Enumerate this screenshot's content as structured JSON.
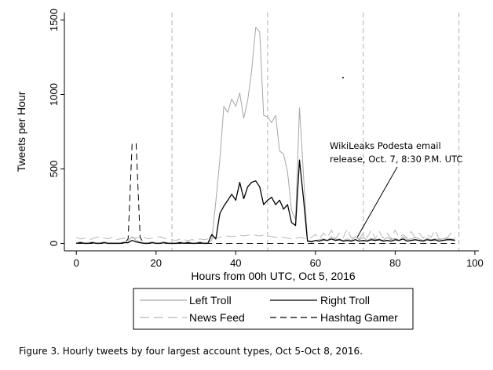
{
  "chart_data": {
    "type": "line",
    "xlabel": "Hours from 00h UTC, Oct 5, 2016",
    "ylabel": "Tweets per Hour",
    "xlim": [
      -3,
      101
    ],
    "ylim": [
      -50,
      1550
    ],
    "xticks": [
      0,
      20,
      40,
      60,
      80,
      100
    ],
    "yticks": [
      0,
      500,
      1000,
      1500
    ],
    "vlines": [
      24,
      48,
      72,
      96
    ],
    "annotation": {
      "lines": [
        "WikiLeaks Podesta email",
        "release, Oct. 7, 8:30 P.M. UTC"
      ],
      "target": [
        70.5,
        0
      ]
    },
    "legend_position": "bottom",
    "x": [
      0,
      1,
      2,
      3,
      4,
      5,
      6,
      7,
      8,
      9,
      10,
      11,
      12,
      13,
      14,
      15,
      16,
      17,
      18,
      19,
      20,
      21,
      22,
      23,
      24,
      25,
      26,
      27,
      28,
      29,
      30,
      31,
      32,
      33,
      34,
      35,
      36,
      37,
      38,
      39,
      40,
      41,
      42,
      43,
      44,
      45,
      46,
      47,
      48,
      49,
      50,
      51,
      52,
      53,
      54,
      55,
      56,
      57,
      58,
      59,
      60,
      61,
      62,
      63,
      64,
      65,
      66,
      67,
      68,
      69,
      70,
      71,
      72,
      73,
      74,
      75,
      76,
      77,
      78,
      79,
      80,
      81,
      82,
      83,
      84,
      85,
      86,
      87,
      88,
      89,
      90,
      91,
      92,
      93,
      94,
      95
    ],
    "series": [
      {
        "name": "Left Troll",
        "color": "#a6a6a6",
        "dash": "solid",
        "values": [
          5,
          10,
          5,
          5,
          10,
          5,
          5,
          10,
          5,
          5,
          5,
          5,
          10,
          15,
          45,
          20,
          10,
          5,
          5,
          10,
          5,
          5,
          10,
          5,
          5,
          5,
          10,
          5,
          10,
          5,
          5,
          10,
          5,
          5,
          20,
          280,
          560,
          920,
          880,
          970,
          920,
          1010,
          840,
          960,
          1160,
          1450,
          1420,
          860,
          850,
          810,
          860,
          620,
          600,
          480,
          220,
          160,
          910,
          460,
          20,
          15,
          20,
          25,
          30,
          20,
          45,
          25,
          30,
          20,
          30,
          20,
          45,
          25,
          40,
          20,
          35,
          25,
          30,
          20,
          40,
          25,
          35,
          20,
          45,
          25,
          30,
          40,
          30,
          20,
          35,
          25,
          30,
          25,
          30,
          35,
          30,
          25
        ]
      },
      {
        "name": "Right Troll",
        "color": "#000000",
        "dash": "solid",
        "values": [
          0,
          5,
          0,
          0,
          5,
          0,
          0,
          5,
          0,
          0,
          0,
          0,
          5,
          5,
          20,
          10,
          5,
          0,
          0,
          5,
          0,
          0,
          5,
          0,
          0,
          0,
          5,
          0,
          5,
          0,
          0,
          5,
          0,
          0,
          60,
          30,
          200,
          250,
          290,
          330,
          290,
          410,
          300,
          380,
          410,
          420,
          380,
          260,
          290,
          310,
          260,
          290,
          230,
          260,
          140,
          120,
          560,
          300,
          15,
          10,
          20,
          15,
          25,
          20,
          30,
          20,
          25,
          15,
          20,
          15,
          25,
          15,
          20,
          15,
          25,
          20,
          25,
          15,
          20,
          15,
          25,
          20,
          30,
          15,
          20,
          25,
          20,
          15,
          25,
          20,
          25,
          15,
          20,
          25,
          25,
          20
        ]
      },
      {
        "name": "News Feed",
        "color": "#b8b8b8",
        "dash": "12,6",
        "values": [
          40,
          30,
          35,
          25,
          30,
          40,
          45,
          35,
          30,
          40,
          25,
          30,
          35,
          30,
          40,
          35,
          45,
          40,
          30,
          35,
          40,
          45,
          35,
          30,
          25,
          20,
          30,
          25,
          20,
          25,
          20,
          30,
          25,
          30,
          35,
          40,
          40,
          45,
          50,
          45,
          50,
          55,
          50,
          55,
          60,
          55,
          50,
          55,
          50,
          45,
          40,
          45,
          40,
          35,
          30,
          35,
          40,
          35,
          30,
          40,
          60,
          30,
          70,
          40,
          90,
          30,
          70,
          40,
          100,
          35,
          50,
          30,
          70,
          40,
          90,
          30,
          80,
          35,
          70,
          30,
          90,
          40,
          60,
          35,
          80,
          40,
          70,
          35,
          60,
          40,
          90,
          30,
          40,
          35,
          70,
          30
        ]
      },
      {
        "name": "Hashtag Gamer",
        "color": "#000000",
        "dash": "8,5",
        "values": [
          0,
          0,
          0,
          0,
          0,
          0,
          0,
          0,
          0,
          0,
          0,
          0,
          0,
          30,
          670,
          670,
          40,
          0,
          0,
          0,
          0,
          0,
          0,
          0,
          0,
          0,
          0,
          0,
          0,
          0,
          0,
          0,
          0,
          0,
          0,
          0,
          0,
          0,
          0,
          0,
          0,
          0,
          0,
          0,
          0,
          0,
          0,
          0,
          0,
          0,
          0,
          0,
          0,
          0,
          0,
          0,
          0,
          0,
          0,
          0,
          0,
          0,
          0,
          0,
          0,
          0,
          0,
          0,
          0,
          0,
          0,
          0,
          0,
          0,
          0,
          0,
          0,
          0,
          0,
          0,
          0,
          0,
          0,
          0,
          0,
          0,
          0,
          0,
          0,
          0,
          0,
          0,
          0,
          0,
          0,
          0
        ]
      }
    ],
    "legend_order": [
      "Left Troll",
      "Right Troll",
      "News Feed",
      "Hashtag Gamer"
    ]
  },
  "caption": "Figure 3. Hourly tweets by four largest account types, Oct 5-Oct 8, 2016."
}
